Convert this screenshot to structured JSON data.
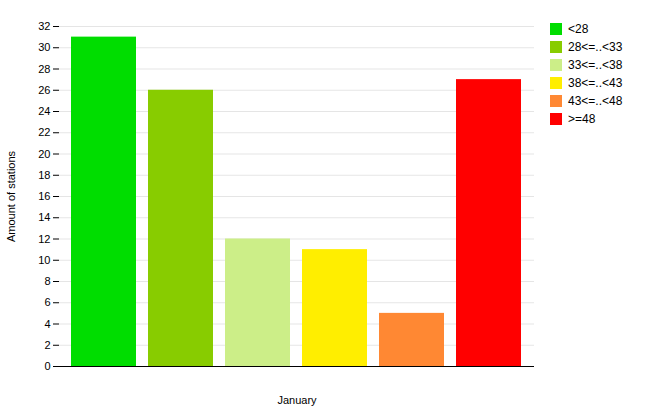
{
  "chart_data": {
    "type": "bar",
    "categories": [
      "<28",
      "28<=..<33",
      "33<=..<38",
      "38<=..<43",
      "43<=..<48",
      ">=48"
    ],
    "values": [
      31,
      26,
      12,
      11,
      5,
      27
    ],
    "colors": [
      "#00DD00",
      "#88CC00",
      "#CCEE88",
      "#FFEE00",
      "#FF8833",
      "#FF0000"
    ],
    "xlabel": "January",
    "ylabel": "Amount of stations",
    "ylim": [
      0,
      32
    ],
    "yticks": [
      0,
      2,
      4,
      6,
      8,
      10,
      12,
      14,
      16,
      18,
      20,
      22,
      24,
      26,
      28,
      30,
      32
    ],
    "grid": true,
    "legend": "upper right",
    "tick_labels": "y"
  }
}
